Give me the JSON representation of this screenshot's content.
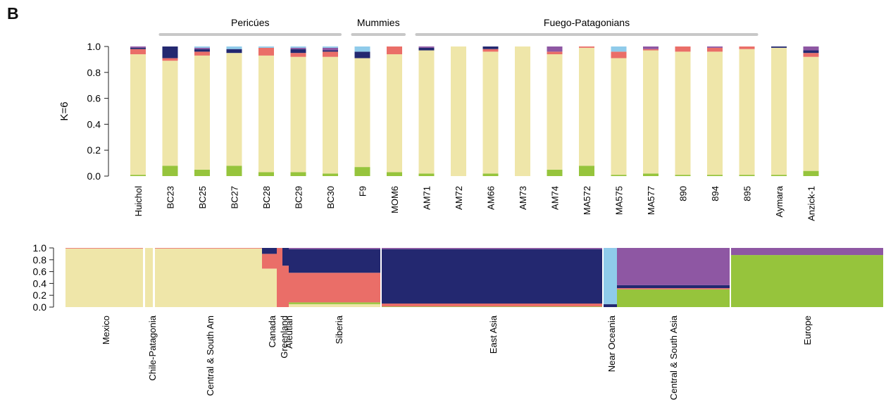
{
  "panel_label": "B",
  "colors": {
    "yellow": "#efe6a9",
    "green": "#96c43c",
    "red": "#ea6e68",
    "navy": "#232870",
    "purple": "#8e57a3",
    "lightblue": "#8fcbea",
    "group_bar": "#c8c8c8"
  },
  "chart_data": [
    {
      "type": "bar",
      "stacked": true,
      "ylabel": "K=6",
      "ylim": [
        0,
        1
      ],
      "yticks": [
        "0.0",
        "0.2",
        "0.4",
        "0.6",
        "0.8",
        "1.0"
      ],
      "groups": [
        {
          "label": "Pericúes",
          "from": "BC23",
          "to": "BC30"
        },
        {
          "label": "Mummies",
          "from": "F9",
          "to": "MOM6"
        },
        {
          "label": "Fuego-Patagonians",
          "from": "AM71",
          "to": "895"
        }
      ],
      "categories": [
        "Huichol",
        "BC23",
        "BC25",
        "BC27",
        "BC28",
        "BC29",
        "BC30",
        "F9",
        "MOM6",
        "AM71",
        "AM72",
        "AM66",
        "AM73",
        "AM74",
        "MA572",
        "MA575",
        "MA577",
        "890",
        "894",
        "895",
        "Aymara",
        "Anzick-1"
      ],
      "series": [
        {
          "color": "green",
          "values": [
            0.01,
            0.08,
            0.05,
            0.08,
            0.03,
            0.03,
            0.02,
            0.07,
            0.03,
            0.02,
            0.0,
            0.02,
            0.0,
            0.05,
            0.08,
            0.01,
            0.02,
            0.01,
            0.01,
            0.01,
            0.01,
            0.04
          ]
        },
        {
          "color": "yellow",
          "values": [
            0.93,
            0.81,
            0.88,
            0.87,
            0.9,
            0.89,
            0.9,
            0.84,
            0.91,
            0.95,
            1.0,
            0.94,
            1.0,
            0.89,
            0.91,
            0.9,
            0.95,
            0.95,
            0.95,
            0.97,
            0.98,
            0.88
          ]
        },
        {
          "color": "red",
          "values": [
            0.04,
            0.02,
            0.03,
            0.0,
            0.06,
            0.03,
            0.04,
            0.0,
            0.06,
            0.0,
            0.0,
            0.02,
            0.0,
            0.02,
            0.01,
            0.05,
            0.01,
            0.04,
            0.03,
            0.02,
            0.0,
            0.03
          ]
        },
        {
          "color": "navy",
          "values": [
            0.01,
            0.09,
            0.02,
            0.03,
            0.0,
            0.03,
            0.01,
            0.05,
            0.0,
            0.02,
            0.0,
            0.02,
            0.0,
            0.0,
            0.0,
            0.0,
            0.0,
            0.0,
            0.0,
            0.0,
            0.01,
            0.02
          ]
        },
        {
          "color": "purple",
          "values": [
            0.01,
            0.0,
            0.01,
            0.0,
            0.0,
            0.01,
            0.02,
            0.0,
            0.0,
            0.01,
            0.0,
            0.0,
            0.0,
            0.04,
            0.0,
            0.0,
            0.02,
            0.0,
            0.01,
            0.0,
            0.0,
            0.03
          ]
        },
        {
          "color": "lightblue",
          "values": [
            0.0,
            0.0,
            0.01,
            0.02,
            0.01,
            0.01,
            0.01,
            0.04,
            0.0,
            0.0,
            0.0,
            0.0,
            0.0,
            0.0,
            0.0,
            0.04,
            0.0,
            0.0,
            0.0,
            0.0,
            0.0,
            0.0
          ]
        }
      ]
    },
    {
      "type": "bar",
      "stacked": true,
      "ylim": [
        0,
        1
      ],
      "yticks": [
        "0.0",
        "0.2",
        "0.4",
        "0.6",
        "0.8",
        "1.0"
      ],
      "categories": [
        "Mexico",
        "Chile-Patagonia",
        "Central & South Am",
        "Canada",
        "Greenland",
        "Aleutian",
        "Siberia",
        "East Asia",
        "Near Oceania",
        "Central & South Asia",
        "Europe"
      ],
      "series": [
        {
          "color": "yellow",
          "values": [
            0.99,
            1.0,
            0.99,
            0.65,
            0.0,
            0.0,
            0.05,
            0.0,
            0.0,
            0.0,
            0.0
          ]
        },
        {
          "color": "green",
          "values": [
            0.0,
            0.0,
            0.0,
            0.0,
            0.0,
            0.0,
            0.03,
            0.01,
            0.0,
            0.3,
            0.88
          ]
        },
        {
          "color": "red",
          "values": [
            0.01,
            0.0,
            0.01,
            0.25,
            1.0,
            0.7,
            0.5,
            0.05,
            0.0,
            0.02,
            0.0
          ]
        },
        {
          "color": "navy",
          "values": [
            0.0,
            0.0,
            0.0,
            0.1,
            0.0,
            0.3,
            0.4,
            0.92,
            0.05,
            0.05,
            0.0
          ]
        },
        {
          "color": "lightblue",
          "values": [
            0.0,
            0.0,
            0.0,
            0.0,
            0.0,
            0.0,
            0.0,
            0.0,
            0.95,
            0.0,
            0.0
          ]
        },
        {
          "color": "purple",
          "values": [
            0.0,
            0.0,
            0.0,
            0.0,
            0.0,
            0.0,
            0.02,
            0.02,
            0.0,
            0.63,
            0.12
          ]
        }
      ]
    }
  ]
}
